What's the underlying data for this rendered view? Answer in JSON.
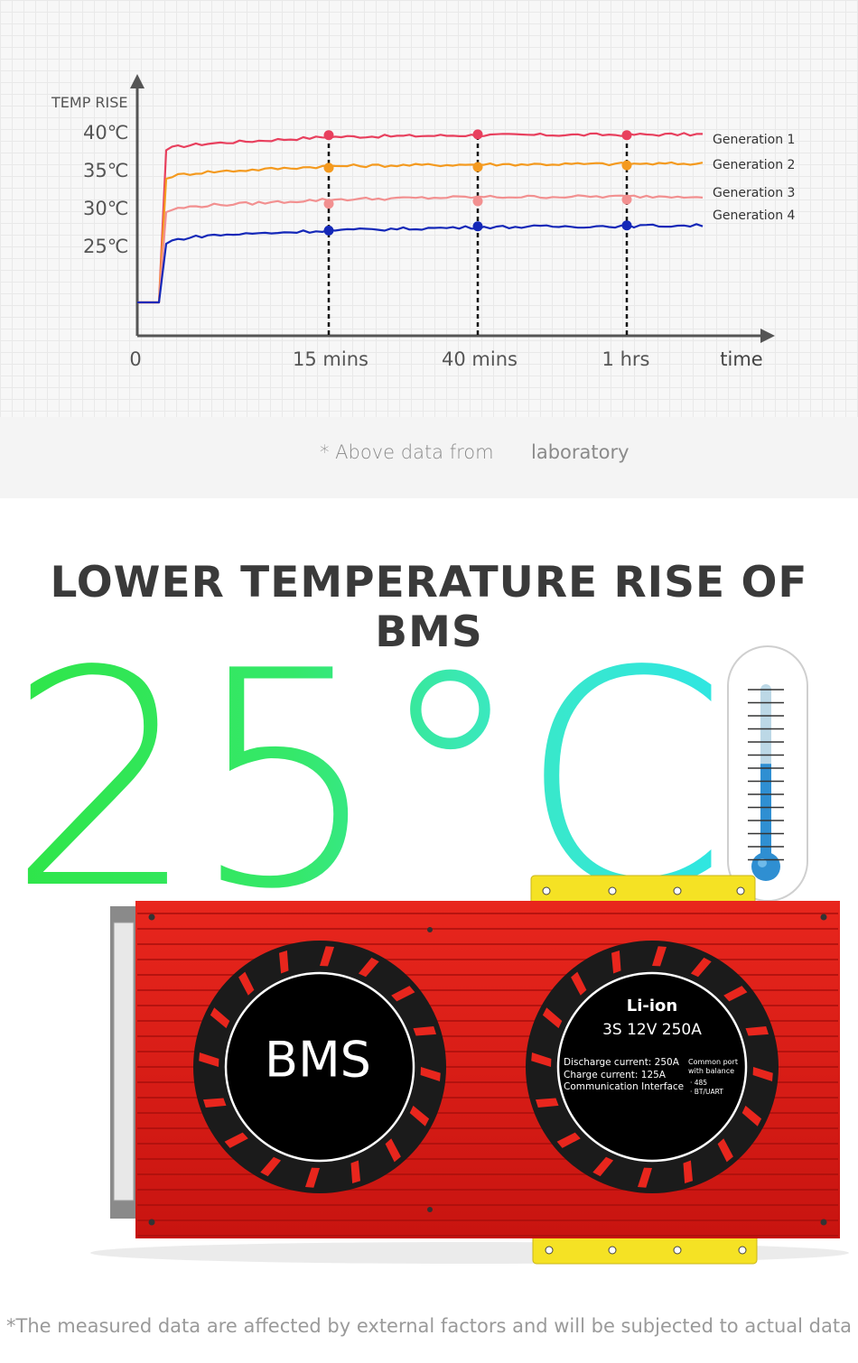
{
  "chart_data": {
    "type": "line",
    "ylabel": "TEMP RISE",
    "xlabel": "time",
    "y_ticks": [
      "40℃",
      "35℃",
      "30℃",
      "25℃"
    ],
    "x_ticks": [
      "0",
      "15 mins",
      "40 mins",
      "1 hrs"
    ],
    "marker_ticks": [
      1,
      2,
      3
    ],
    "series": [
      {
        "name": "Generation 1",
        "color": "#e8405e",
        "start": 20,
        "values": [
          20,
          20,
          38.2,
          39.0,
          39.8,
          40.0,
          40.1
        ]
      },
      {
        "name": "Generation 2",
        "color": "#f49a1f",
        "start": 20,
        "values": [
          20,
          20,
          34.8,
          35.6,
          36.3,
          36.5,
          36.6
        ]
      },
      {
        "name": "Generation 3",
        "color": "#f29090",
        "start": 20,
        "values": [
          20,
          20,
          30.8,
          31.6,
          32.3,
          32.6,
          32.7
        ]
      },
      {
        "name": "Generation 4",
        "color": "#1428b8",
        "start": 20,
        "values": [
          20,
          20,
          27.0,
          28.0,
          28.6,
          29.0,
          29.2
        ]
      }
    ],
    "marker_values": [
      [
        40.0,
        40.1,
        40.0
      ],
      [
        36.1,
        36.2,
        36.4
      ],
      [
        31.8,
        32.1,
        32.3
      ],
      [
        28.6,
        29.1,
        29.2
      ]
    ],
    "ylim": [
      16,
      43
    ]
  },
  "notes": {
    "data_source_left": "* Above data from",
    "data_source_right": "laboratory",
    "footer": "*The measured data are affected by external factors and will be subjected to actual data"
  },
  "headline": "LOWER TEMPERATURE RISE OF BMS",
  "big_temp": "25°C",
  "product": {
    "fan_left_label": "BMS",
    "fan_right_title": "Li-ion",
    "fan_right_spec": "3S 12V 250A",
    "spec_lines": [
      "Discharge current:  250A",
      "Charge current:  125A",
      "Communication Interface"
    ],
    "port_lines": [
      "Common port",
      "with balance",
      "· 485",
      "· BT/UART"
    ]
  },
  "thermometer": {
    "level": 0.58
  }
}
